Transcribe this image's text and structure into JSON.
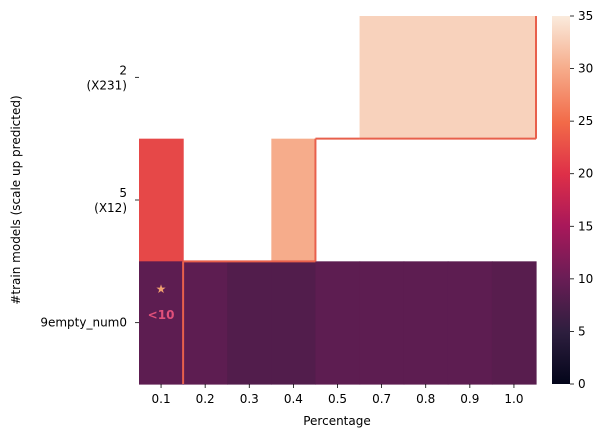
{
  "chart_data": {
    "type": "heatmap",
    "xlabel": "Percentage",
    "ylabel": "#train models (scale up predicted)",
    "x_categories": [
      "0.1",
      "0.2",
      "0.3",
      "0.4",
      "0.5",
      "0.7",
      "0.8",
      "0.9",
      "1.0"
    ],
    "y_categories": [
      {
        "line1": "2",
        "line2": "(X231)"
      },
      {
        "line1": "5",
        "line2": "(X12)"
      },
      {
        "line1": "9empty_num0",
        "line2": ""
      }
    ],
    "values": [
      [
        null,
        null,
        null,
        null,
        null,
        33,
        33,
        33,
        33
      ],
      [
        22,
        null,
        null,
        30,
        null,
        null,
        null,
        null,
        null
      ],
      [
        9,
        9,
        8,
        8,
        9,
        9,
        9,
        9,
        8.5
      ]
    ],
    "colorbar": {
      "min": 0,
      "max": 35,
      "ticks": [
        "0",
        "5",
        "10",
        "15",
        "20",
        "25",
        "30",
        "35"
      ]
    },
    "annotations": [
      {
        "label": "star",
        "text": "★",
        "row": 2,
        "col": 0,
        "color": "#f0a070"
      },
      {
        "label": "less-than-10",
        "text": "<10",
        "row": 2,
        "col": 0,
        "color": "#e0507a"
      }
    ],
    "boundary_color": "#e8604c",
    "colormap": "rocket"
  }
}
